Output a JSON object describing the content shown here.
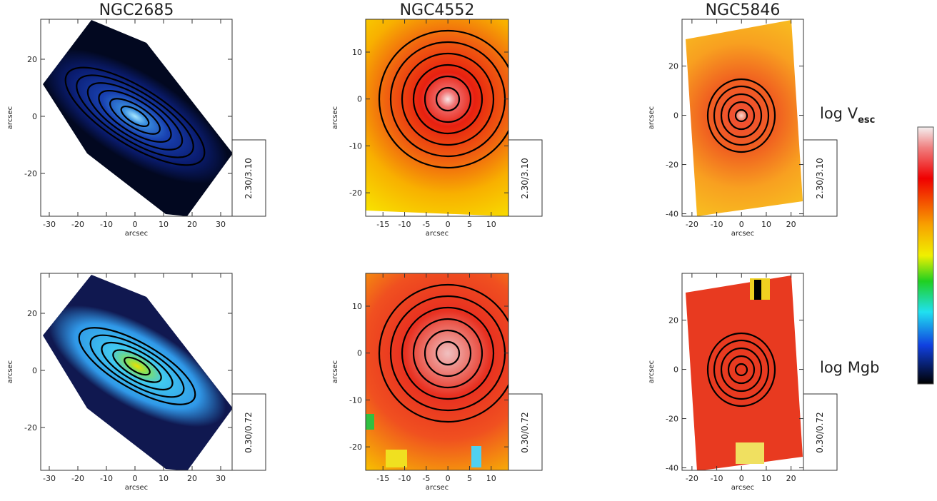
{
  "chart_data": [
    {
      "type": "map",
      "title": "NGC2685",
      "xlabel": "arcsec",
      "ylabel": "arcsec",
      "xlim": [
        -33,
        34
      ],
      "ylim": [
        -35,
        34
      ],
      "xticks": [
        -30,
        -20,
        -10,
        0,
        10,
        20,
        30
      ],
      "yticks": [
        -20,
        0,
        20
      ],
      "range_label": "2.30/3.10"
    },
    {
      "type": "map",
      "title": "NGC4552",
      "xlabel": "arcsec",
      "ylabel": "arcsec",
      "xlim": [
        -19,
        14
      ],
      "ylim": [
        -25,
        17
      ],
      "xticks": [
        -15,
        -10,
        -5,
        0,
        5,
        10
      ],
      "yticks": [
        -20,
        -10,
        0,
        10
      ],
      "range_label": "2.30/3.10"
    },
    {
      "type": "map",
      "title": "NGC5846",
      "xlabel": "arcsec",
      "ylabel": "arcsec",
      "xlim": [
        -24,
        25
      ],
      "ylim": [
        -41,
        39
      ],
      "xticks": [
        -20,
        -10,
        0,
        10,
        20
      ],
      "yticks": [
        -40,
        -20,
        0,
        20
      ],
      "range_label": "2.30/3.10"
    },
    {
      "type": "map",
      "xlabel": "arcsec",
      "ylabel": "arcsec",
      "xlim": [
        -33,
        34
      ],
      "ylim": [
        -35,
        34
      ],
      "xticks": [
        -30,
        -20,
        -10,
        0,
        10,
        20,
        30
      ],
      "yticks": [
        -20,
        0,
        20
      ],
      "range_label": "0.30/0.72"
    },
    {
      "type": "map",
      "xlabel": "arcsec",
      "ylabel": "arcsec",
      "xlim": [
        -19,
        14
      ],
      "ylim": [
        -25,
        17
      ],
      "xticks": [
        -15,
        -10,
        -5,
        0,
        5,
        10
      ],
      "yticks": [
        -20,
        -10,
        0,
        10
      ],
      "range_label": "0.30/0.72"
    },
    {
      "type": "map",
      "xlabel": "arcsec",
      "ylabel": "arcsec",
      "xlim": [
        -24,
        25
      ],
      "ylim": [
        -41,
        39
      ],
      "xticks": [
        -20,
        -10,
        0,
        10,
        20
      ],
      "yticks": [
        -40,
        -20,
        0,
        20
      ],
      "range_label": "0.30/0.72"
    }
  ],
  "row_labels": [
    {
      "text": "log V",
      "subscript": "esc"
    },
    {
      "text": "log Mgb"
    }
  ]
}
